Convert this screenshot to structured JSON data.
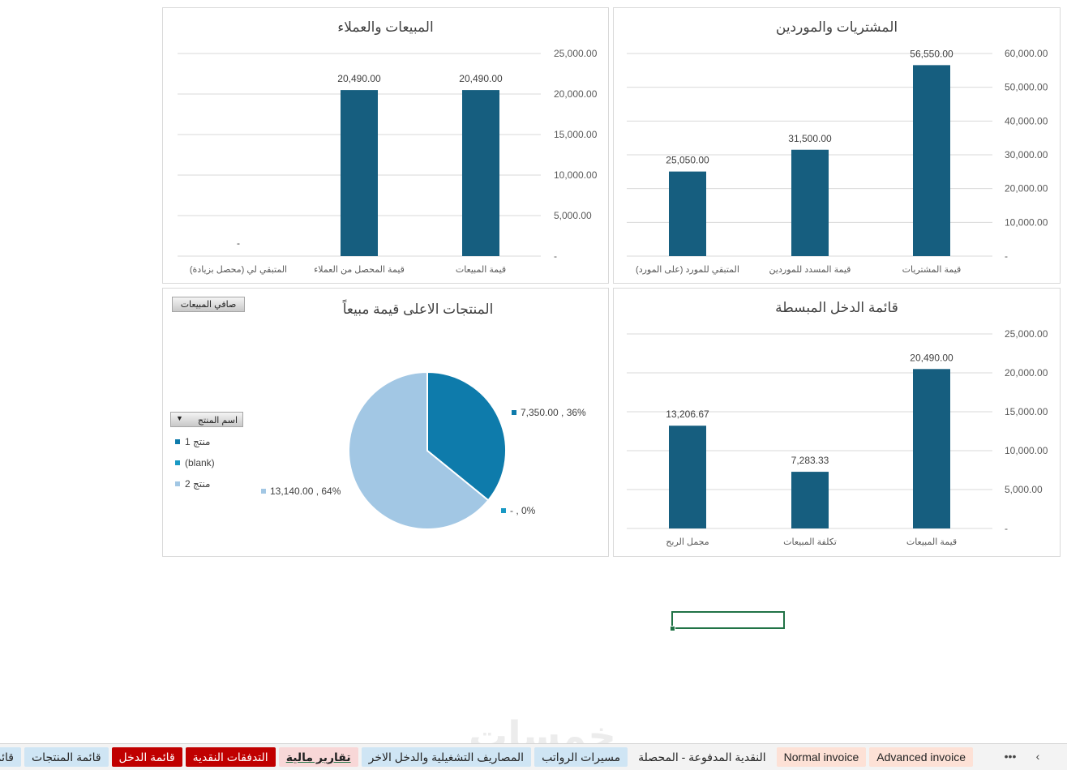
{
  "charts": {
    "sales": {
      "title": "المبيعات والعملاء",
      "yticks": [
        "25,000.00",
        "20,000.00",
        "15,000.00",
        "10,000.00",
        "5,000.00",
        "-"
      ],
      "bars": [
        {
          "label": "قيمة المبيعات",
          "value": 20490,
          "display": "20,490.00"
        },
        {
          "label": "قيمة المحصل من العملاء",
          "value": 20490,
          "display": "20,490.00"
        },
        {
          "label": "المتبقي لي (محصل بزيادة)",
          "value": 0,
          "display": "-"
        }
      ]
    },
    "purchases": {
      "title": "المشتريات والموردين",
      "yticks": [
        "60,000.00",
        "50,000.00",
        "40,000.00",
        "30,000.00",
        "20,000.00",
        "10,000.00",
        "-"
      ],
      "bars": [
        {
          "label": "قيمة المشتريات",
          "value": 56550,
          "display": "56,550.00"
        },
        {
          "label": "قيمة المسدد للموردين",
          "value": 31500,
          "display": "31,500.00"
        },
        {
          "label": "المتبقي للمورد (على المورد)",
          "value": 25050,
          "display": "25,050.00"
        }
      ]
    },
    "income": {
      "title": "قائمة الدخل المبسطة",
      "yticks": [
        "25,000.00",
        "20,000.00",
        "15,000.00",
        "10,000.00",
        "5,000.00",
        "-"
      ],
      "bars": [
        {
          "label": "قيمة المبيعات",
          "value": 20490,
          "display": "20,490.00"
        },
        {
          "label": "تكلفة المبيعات",
          "value": 7283.33,
          "display": "7,283.33"
        },
        {
          "label": "مجمل الربح",
          "value": 13206.67,
          "display": "13,206.67"
        }
      ]
    },
    "products": {
      "title": "المنتجات الاعلى قيمة مبيعاً",
      "value_button": "صافي المبيعات",
      "field_button": "اسم المنتج",
      "legend": [
        {
          "label": "منتج 1",
          "color": "#0e7bab"
        },
        {
          "label": "(blank)",
          "color": "#1999c4"
        },
        {
          "label": "منتج 2",
          "color": "#a2c7e4"
        }
      ],
      "slices": [
        {
          "label": "منتج 1",
          "value": 7350,
          "data_label": "7,350.00 , 36%"
        },
        {
          "label": "(blank)",
          "value": 0,
          "data_label": "- , 0%"
        },
        {
          "label": "منتج 2",
          "value": 13140,
          "data_label": "13,140.00 , 64%"
        }
      ]
    }
  },
  "chart_data": [
    {
      "type": "bar",
      "title": "المبيعات والعملاء",
      "categories": [
        "قيمة المبيعات",
        "قيمة المحصل من العملاء",
        "المتبقي لي (محصل بزيادة)"
      ],
      "values": [
        20490,
        20490,
        0
      ],
      "ylim": [
        0,
        25000
      ],
      "grid": true
    },
    {
      "type": "bar",
      "title": "المشتريات والموردين",
      "categories": [
        "قيمة المشتريات",
        "قيمة المسدد للموردين",
        "المتبقي للمورد (على المورد)"
      ],
      "values": [
        56550,
        31500,
        25050
      ],
      "ylim": [
        0,
        60000
      ],
      "grid": true
    },
    {
      "type": "pie",
      "title": "المنتجات الاعلى قيمة مبيعاً",
      "categories": [
        "منتج 1",
        "(blank)",
        "منتج 2"
      ],
      "values": [
        7350,
        0,
        13140
      ],
      "legend": "left"
    },
    {
      "type": "bar",
      "title": "قائمة الدخل المبسطة",
      "categories": [
        "قيمة المبيعات",
        "تكلفة المبيعات",
        "مجمل الربح"
      ],
      "values": [
        20490,
        7283.33,
        13206.67
      ],
      "ylim": [
        0,
        25000
      ],
      "grid": true
    }
  ],
  "colors": {
    "bar": "#165e7f",
    "grid": "#d9d9d9",
    "selection": "#217346"
  },
  "watermark": "خمسات",
  "sheet_tabs": [
    {
      "label": "Advanced invoice",
      "bg": "#fde1d6",
      "color": "#222"
    },
    {
      "label": "Normal invoice",
      "bg": "#fde1d6",
      "color": "#222"
    },
    {
      "label": "النقدية المدفوعة - المحصلة",
      "bg": "#f3f3f3",
      "color": "#222"
    },
    {
      "label": "مسيرات الرواتب",
      "bg": "#cfe5f4",
      "color": "#222"
    },
    {
      "label": "المصاريف التشغيلية والدخل الاخر",
      "bg": "#cfe5f4",
      "color": "#222"
    },
    {
      "label": "تقارير مالية",
      "bg": "#f8d7d7",
      "color": "#222",
      "active": true
    },
    {
      "label": "التدفقات النقدية",
      "bg": "#c00000",
      "color": "#ffffff"
    },
    {
      "label": "قائمة الدخل",
      "bg": "#c00000",
      "color": "#ffffff"
    },
    {
      "label": "قائمة المنتجات",
      "bg": "#cfe5f4",
      "color": "#222"
    },
    {
      "label": "قائمة ا",
      "bg": "#cfe5f4",
      "color": "#222"
    }
  ],
  "nav": {
    "more": "•••",
    "prev": "‹"
  }
}
